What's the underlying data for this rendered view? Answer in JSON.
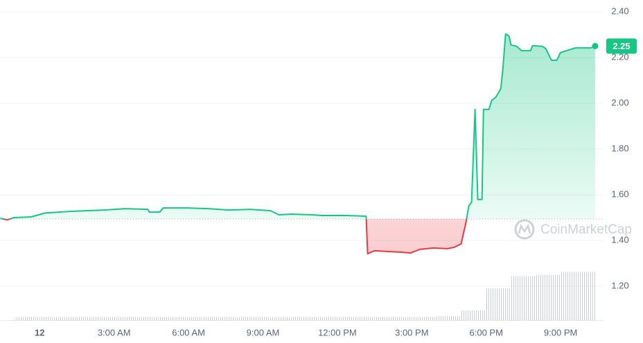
{
  "chart_data": {
    "type": "line",
    "x": [
      -1.59,
      -1.31,
      -1.03,
      -0.34,
      0.22,
      1.2,
      2.6,
      3.44,
      4.36,
      4.42,
      4.84,
      4.98,
      5.95,
      6.79,
      7.63,
      8.47,
      9.31,
      9.64,
      10.15,
      10.98,
      11.4,
      12.38,
      13.16,
      13.22,
      13.5,
      14.62,
      14.95,
      15.32,
      15.87,
      16.43,
      16.71,
      16.99,
      17.19,
      17.3,
      17.41,
      17.55,
      17.66,
      17.83,
      17.89,
      18.11,
      18.22,
      18.39,
      18.59,
      18.67,
      18.78,
      18.92,
      19.0,
      19.23,
      19.42,
      19.79,
      19.87,
      20.26,
      20.4,
      20.63,
      20.85,
      20.99,
      21.33,
      21.6,
      22.22,
      22.39
    ],
    "values": [
      1.497,
      1.49,
      1.5,
      1.503,
      1.52,
      1.527,
      1.533,
      1.539,
      1.536,
      1.524,
      1.524,
      1.542,
      1.542,
      1.539,
      1.533,
      1.536,
      1.53,
      1.512,
      1.515,
      1.512,
      1.509,
      1.509,
      1.506,
      1.342,
      1.355,
      1.348,
      1.345,
      1.361,
      1.367,
      1.364,
      1.37,
      1.385,
      1.482,
      1.552,
      1.567,
      1.973,
      1.579,
      1.579,
      1.973,
      1.973,
      2.012,
      2.027,
      2.064,
      2.148,
      2.303,
      2.294,
      2.255,
      2.249,
      2.23,
      2.23,
      2.252,
      2.249,
      2.239,
      2.188,
      2.188,
      2.221,
      2.233,
      2.242,
      2.242,
      2.25
    ],
    "baseline": 1.494,
    "up_color": "#16c784",
    "down_color": "#ea3943",
    "current_price": 2.25,
    "volume": {
      "x": [
        -1,
        0,
        1,
        2,
        3,
        4,
        5,
        6,
        7,
        8,
        9,
        10,
        11,
        12,
        13,
        14,
        15,
        16,
        17,
        18,
        19,
        20,
        21,
        22
      ],
      "values": [
        5,
        5,
        5,
        5,
        5,
        5,
        5,
        5,
        5,
        5,
        5,
        5,
        5,
        5,
        5,
        5,
        5,
        6,
        14,
        45,
        62,
        64,
        68,
        68
      ],
      "color": "#c9ccd3"
    },
    "xlim": [
      -1.6,
      22.7
    ],
    "ylim": [
      1.05,
      2.45
    ],
    "xticks": [
      {
        "value": 0,
        "label": "12"
      },
      {
        "value": 3,
        "label": "3:00 AM"
      },
      {
        "value": 6,
        "label": "6:00 AM"
      },
      {
        "value": 9,
        "label": "9:00 AM"
      },
      {
        "value": 12,
        "label": "12:00 PM"
      },
      {
        "value": 15,
        "label": "3:00 PM"
      },
      {
        "value": 18,
        "label": "6:00 PM"
      },
      {
        "value": 21,
        "label": "9:00 PM"
      }
    ],
    "yticks": [
      {
        "value": 1.2,
        "label": "1.20"
      },
      {
        "value": 1.4,
        "label": "1.40"
      },
      {
        "value": 1.6,
        "label": "1.60"
      },
      {
        "value": 1.8,
        "label": "1.80"
      },
      {
        "value": 2.0,
        "label": "2.00"
      },
      {
        "value": 2.2,
        "label": "2.20"
      },
      {
        "value": 2.4,
        "label": "2.40"
      }
    ],
    "grid": true,
    "watermark": "CoinMarketCap"
  }
}
